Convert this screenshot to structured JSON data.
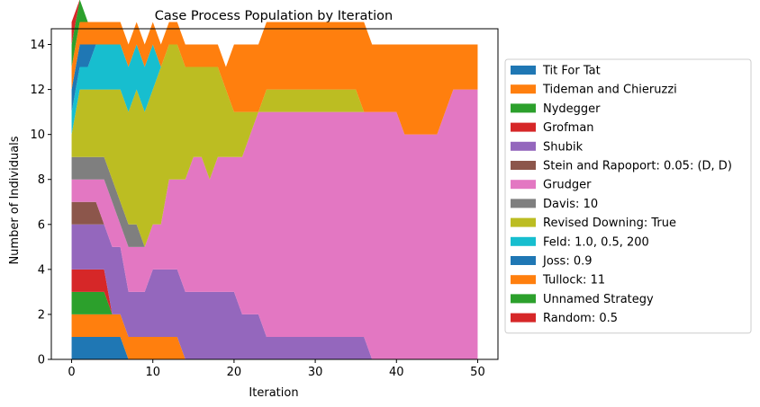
{
  "chart_data": {
    "type": "area",
    "title": "Case Process Population by Iteration",
    "xlabel": "Iteration",
    "ylabel": "Number of Individuals",
    "xlim": [
      -2.5,
      52.5
    ],
    "ylim": [
      0,
      14.7
    ],
    "xticks": [
      0,
      10,
      20,
      30,
      40,
      50
    ],
    "yticks": [
      0,
      2,
      4,
      6,
      8,
      10,
      12,
      14
    ],
    "legend_position": "right",
    "x": [
      0,
      1,
      2,
      3,
      4,
      5,
      6,
      7,
      8,
      9,
      10,
      11,
      12,
      13,
      14,
      15,
      16,
      17,
      18,
      19,
      20,
      21,
      22,
      23,
      24,
      25,
      26,
      27,
      28,
      29,
      30,
      31,
      32,
      33,
      34,
      35,
      36,
      37,
      38,
      39,
      40,
      41,
      42,
      43,
      44,
      45,
      46,
      47,
      48,
      49,
      50
    ],
    "series": [
      {
        "name": "Tit For Tat",
        "color": "#1f77b4",
        "values": [
          1,
          1,
          1,
          1,
          1,
          1,
          1,
          0,
          0,
          0,
          0,
          0,
          0,
          0,
          0,
          0,
          0,
          0,
          0,
          0,
          0,
          0,
          0,
          0,
          0,
          0,
          0,
          0,
          0,
          0,
          0,
          0,
          0,
          0,
          0,
          0,
          0,
          0,
          0,
          0,
          0,
          0,
          0,
          0,
          0,
          0,
          0,
          0,
          0,
          0,
          0
        ]
      },
      {
        "name": "Tideman and Chieruzzi",
        "color": "#ff7f0e",
        "values": [
          1,
          1,
          1,
          1,
          1,
          1,
          1,
          1,
          1,
          1,
          1,
          1,
          1,
          1,
          0,
          0,
          0,
          0,
          0,
          0,
          0,
          0,
          0,
          0,
          0,
          0,
          0,
          0,
          0,
          0,
          0,
          0,
          0,
          0,
          0,
          0,
          0,
          0,
          0,
          0,
          0,
          0,
          0,
          0,
          0,
          0,
          0,
          0,
          0,
          0,
          0
        ]
      },
      {
        "name": "Nydegger",
        "color": "#2ca02c",
        "values": [
          1,
          1,
          1,
          1,
          1,
          0,
          0,
          0,
          0,
          0,
          0,
          0,
          0,
          0,
          0,
          0,
          0,
          0,
          0,
          0,
          0,
          0,
          0,
          0,
          0,
          0,
          0,
          0,
          0,
          0,
          0,
          0,
          0,
          0,
          0,
          0,
          0,
          0,
          0,
          0,
          0,
          0,
          0,
          0,
          0,
          0,
          0,
          0,
          0,
          0,
          0
        ]
      },
      {
        "name": "Grofman",
        "color": "#d62728",
        "values": [
          1,
          1,
          1,
          1,
          1,
          0,
          0,
          0,
          0,
          0,
          0,
          0,
          0,
          0,
          0,
          0,
          0,
          0,
          0,
          0,
          0,
          0,
          0,
          0,
          0,
          0,
          0,
          0,
          0,
          0,
          0,
          0,
          0,
          0,
          0,
          0,
          0,
          0,
          0,
          0,
          0,
          0,
          0,
          0,
          0,
          0,
          0,
          0,
          0,
          0,
          0
        ]
      },
      {
        "name": "Shubik",
        "color": "#9467bd",
        "values": [
          2,
          2,
          2,
          2,
          2,
          3,
          3,
          2,
          2,
          2,
          3,
          3,
          3,
          3,
          3,
          3,
          3,
          3,
          3,
          3,
          3,
          2,
          2,
          2,
          1,
          1,
          1,
          1,
          1,
          1,
          1,
          1,
          1,
          1,
          1,
          1,
          1,
          0,
          0,
          0,
          0,
          0,
          0,
          0,
          0,
          0,
          0,
          0,
          0,
          0,
          0
        ]
      },
      {
        "name": "Stein and Rapoport: 0.05: (D, D)",
        "color": "#8c564b",
        "values": [
          1,
          1,
          1,
          1,
          0,
          0,
          0,
          0,
          0,
          0,
          0,
          0,
          0,
          0,
          0,
          0,
          0,
          0,
          0,
          0,
          0,
          0,
          0,
          0,
          0,
          0,
          0,
          0,
          0,
          0,
          0,
          0,
          0,
          0,
          0,
          0,
          0,
          0,
          0,
          0,
          0,
          0,
          0,
          0,
          0,
          0,
          0,
          0,
          0,
          0,
          0
        ]
      },
      {
        "name": "Grudger",
        "color": "#e377c2",
        "values": [
          1,
          1,
          1,
          1,
          2,
          2,
          1,
          2,
          2,
          2,
          2,
          2,
          4,
          4,
          5,
          6,
          6,
          5,
          6,
          6,
          6,
          7,
          8,
          9,
          10,
          10,
          10,
          10,
          10,
          10,
          10,
          10,
          10,
          10,
          10,
          10,
          10,
          11,
          11,
          11,
          11,
          10,
          10,
          10,
          10,
          10,
          11,
          12,
          12,
          12,
          12
        ]
      },
      {
        "name": "Davis: 10",
        "color": "#7f7f7f",
        "values": [
          1,
          1,
          1,
          1,
          1,
          1,
          1,
          1,
          1,
          0,
          0,
          0,
          0,
          0,
          0,
          0,
          0,
          0,
          0,
          0,
          0,
          0,
          0,
          0,
          0,
          0,
          0,
          0,
          0,
          0,
          0,
          0,
          0,
          0,
          0,
          0,
          0,
          0,
          0,
          0,
          0,
          0,
          0,
          0,
          0,
          0,
          0,
          0,
          0,
          0,
          0
        ]
      },
      {
        "name": "Revised Downing: True",
        "color": "#bcbd22",
        "values": [
          1,
          3,
          3,
          3,
          3,
          4,
          5,
          5,
          6,
          6,
          6,
          7,
          6,
          6,
          5,
          4,
          4,
          5,
          4,
          3,
          2,
          2,
          1,
          0,
          1,
          1,
          1,
          1,
          1,
          1,
          1,
          1,
          1,
          1,
          1,
          1,
          0,
          0,
          0,
          0,
          0,
          0,
          0,
          0,
          0,
          0,
          0,
          0,
          0,
          0,
          0
        ]
      },
      {
        "name": "Feld: 1.0, 0.5, 200",
        "color": "#17becf",
        "values": [
          1,
          1,
          1,
          2,
          2,
          2,
          2,
          2,
          2,
          2,
          2,
          0,
          0,
          0,
          0,
          0,
          0,
          0,
          0,
          0,
          0,
          0,
          0,
          0,
          0,
          0,
          0,
          0,
          0,
          0,
          0,
          0,
          0,
          0,
          0,
          0,
          0,
          0,
          0,
          0,
          0,
          0,
          0,
          0,
          0,
          0,
          0,
          0,
          0,
          0,
          0
        ]
      },
      {
        "name": "Joss: 0.9",
        "color": "#1f77b4",
        "values": [
          1,
          1,
          1,
          0,
          0,
          0,
          0,
          0,
          0,
          0,
          0,
          0,
          0,
          0,
          0,
          0,
          0,
          0,
          0,
          0,
          0,
          0,
          0,
          0,
          0,
          0,
          0,
          0,
          0,
          0,
          0,
          0,
          0,
          0,
          0,
          0,
          0,
          0,
          0,
          0,
          0,
          0,
          0,
          0,
          0,
          0,
          0,
          0,
          0,
          0,
          0
        ]
      },
      {
        "name": "Tullock: 11",
        "color": "#ff7f0e",
        "values": [
          1,
          1,
          1,
          1,
          1,
          1,
          1,
          1,
          1,
          1,
          1,
          1,
          1,
          1,
          1,
          1,
          1,
          1,
          1,
          1,
          3,
          3,
          3,
          3,
          3,
          3,
          3,
          3,
          3,
          3,
          3,
          3,
          3,
          3,
          3,
          3,
          4,
          3,
          3,
          3,
          3,
          4,
          4,
          4,
          4,
          4,
          3,
          2,
          2,
          2,
          2
        ]
      },
      {
        "name": "Unnamed Strategy",
        "color": "#2ca02c",
        "values": [
          1,
          1,
          0,
          0,
          0,
          0,
          0,
          0,
          0,
          0,
          0,
          0,
          0,
          0,
          0,
          0,
          0,
          0,
          0,
          0,
          0,
          0,
          0,
          0,
          0,
          0,
          0,
          0,
          0,
          0,
          0,
          0,
          0,
          0,
          0,
          0,
          0,
          0,
          0,
          0,
          0,
          0,
          0,
          0,
          0,
          0,
          0,
          0,
          0,
          0,
          0
        ]
      },
      {
        "name": "Random: 0.5",
        "color": "#d62728",
        "values": [
          1,
          0,
          0,
          0,
          0,
          0,
          0,
          0,
          0,
          0,
          0,
          0,
          0,
          0,
          0,
          0,
          0,
          0,
          0,
          0,
          0,
          0,
          0,
          0,
          0,
          0,
          0,
          0,
          0,
          0,
          0,
          0,
          0,
          0,
          0,
          0,
          0,
          0,
          0,
          0,
          0,
          0,
          0,
          0,
          0,
          0,
          0,
          0,
          0,
          0,
          0
        ]
      }
    ]
  }
}
